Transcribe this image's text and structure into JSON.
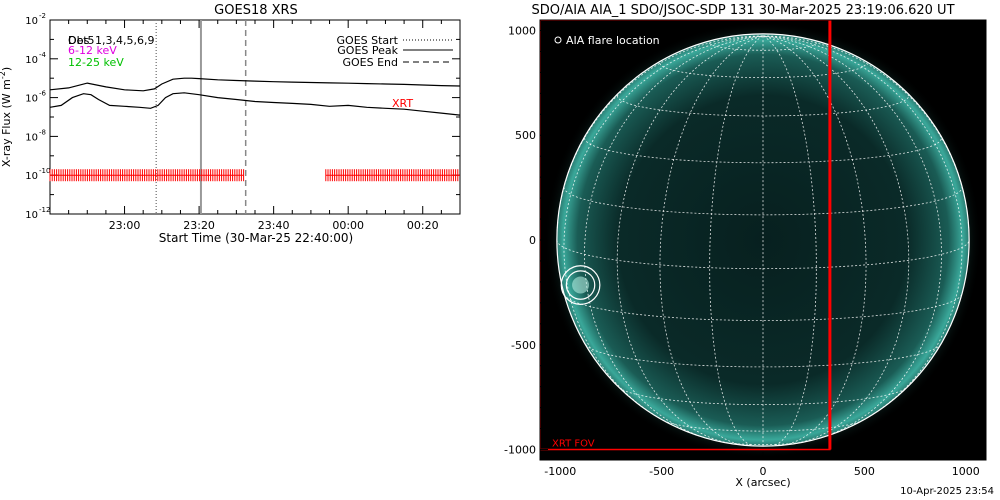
{
  "footer_timestamp": "10-Apr-2025 23:54",
  "colors": {
    "xrt": "#ff0000",
    "ch_614": "#e000e0",
    "ch_1225": "#00c000",
    "disk": "#3fc7b3",
    "grid": "#ffffff"
  },
  "chart_data": [
    {
      "type": "line",
      "title": "GOES18 XRS",
      "xlabel": "Start Time (30-Mar-25 22:40:00)",
      "ylabel": "X-ray Flux (W m",
      "ylabel_sup": "-2",
      "ylabel_close": ")",
      "x_unit": "minutes since 22:40",
      "xlim": [
        0,
        110
      ],
      "ylog": true,
      "ylim_exp": [
        -12,
        -2
      ],
      "y_ticks": [
        {
          "exp": -2,
          "label": "10"
        },
        {
          "exp": -4,
          "label": "10"
        },
        {
          "exp": -6,
          "label": "10"
        },
        {
          "exp": -8,
          "label": "10"
        },
        {
          "exp": -10,
          "label": "10"
        },
        {
          "exp": -12,
          "label": "10"
        }
      ],
      "y_tick_sups": [
        "-2",
        "-4",
        "-6",
        "-8",
        "-10",
        "-12"
      ],
      "x_ticks": [
        {
          "x": 20,
          "label": "23:00"
        },
        {
          "x": 40,
          "label": "23:20"
        },
        {
          "x": 60,
          "label": "23:40"
        },
        {
          "x": 80,
          "label": "00:00"
        },
        {
          "x": 100,
          "label": "00:20"
        }
      ],
      "channel_labels": [
        "Obs",
        "Det5",
        "1,3,4,5,6,9",
        "6-12 keV",
        "12-25 keV"
      ],
      "legend": {
        "position": "top-right",
        "entries": [
          {
            "label": "GOES Start",
            "style": "dotted",
            "x": 28.5
          },
          {
            "label": "GOES Peak",
            "style": "solid",
            "x": 40.5
          },
          {
            "label": "GOES End",
            "style": "dashed",
            "x": 52.5
          }
        ]
      },
      "xrt_label": "XRT",
      "series": [
        {
          "role": "long",
          "x": [
            0,
            5,
            10,
            15,
            20,
            25,
            28,
            30,
            33,
            36,
            38,
            40,
            45,
            50,
            55,
            60,
            65,
            70,
            75,
            80,
            85,
            90,
            95,
            100,
            105,
            110
          ],
          "exp": [
            -5.6,
            -5.5,
            -5.25,
            -5.45,
            -5.6,
            -5.65,
            -5.55,
            -5.3,
            -5.05,
            -5.0,
            -5.0,
            -5.02,
            -5.08,
            -5.12,
            -5.15,
            -5.18,
            -5.2,
            -5.22,
            -5.24,
            -5.26,
            -5.28,
            -5.3,
            -5.32,
            -5.35,
            -5.38,
            -5.4
          ]
        },
        {
          "role": "short",
          "x": [
            0,
            3,
            6,
            9,
            11,
            13,
            16,
            20,
            24,
            27,
            29,
            31,
            33,
            36,
            40,
            45,
            50,
            55,
            60,
            65,
            70,
            75,
            80,
            85,
            90,
            95,
            100,
            105,
            110
          ],
          "exp": [
            -6.5,
            -6.4,
            -6.0,
            -5.8,
            -5.85,
            -6.1,
            -6.4,
            -6.45,
            -6.5,
            -6.55,
            -6.4,
            -6.0,
            -5.8,
            -5.75,
            -5.85,
            -6.0,
            -6.1,
            -6.2,
            -6.25,
            -6.3,
            -6.35,
            -6.45,
            -6.4,
            -6.5,
            -6.55,
            -6.6,
            -6.7,
            -6.8,
            -6.9
          ]
        }
      ],
      "xrt_coverage": [
        [
          0,
          52
        ],
        [
          74,
          110
        ]
      ],
      "xrt_coverage_exp": -10.0
    },
    {
      "type": "scatter",
      "title": "SDO/AIA AIA_1 SDO/JSOC-SDP 131 30-Mar-2025 23:19:06.620 UT",
      "xlabel": "X (arcsec)",
      "ylabel": "",
      "xlim": [
        -1100,
        1100
      ],
      "ylim": [
        -1050,
        1050
      ],
      "x_ticks": [
        -1000,
        -500,
        0,
        500,
        1000
      ],
      "y_ticks": [
        -1000,
        -500,
        0,
        500,
        1000
      ],
      "solar_radius": 1000,
      "legend_text": "AIA flare location",
      "flare_location": {
        "x": -900,
        "y": -215,
        "r_outer": 95,
        "r_inner": 70
      },
      "xrt_fov": {
        "label": "XRT FOV",
        "x0": -1100,
        "x1": 330,
        "y0": -1000,
        "y1": 1050
      }
    }
  ]
}
